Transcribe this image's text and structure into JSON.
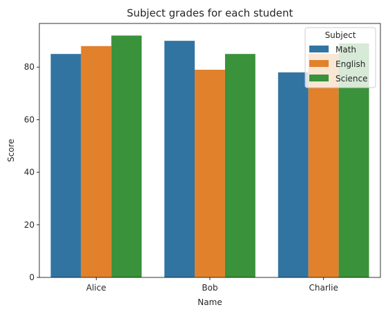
{
  "chart_data": {
    "type": "bar",
    "title": "Subject grades for each student",
    "xlabel": "Name",
    "ylabel": "Score",
    "categories": [
      "Alice",
      "Bob",
      "Charlie"
    ],
    "series": [
      {
        "name": "Math",
        "color": "#3274a1",
        "values": [
          85,
          90,
          78
        ]
      },
      {
        "name": "English",
        "color": "#e1812c",
        "values": [
          88,
          79,
          85
        ]
      },
      {
        "name": "Science",
        "color": "#3a923a",
        "values": [
          92,
          85,
          89
        ]
      }
    ],
    "ylim": [
      0,
      96.6
    ],
    "yticks": [
      0,
      20,
      40,
      60,
      80
    ],
    "legend": {
      "title": "Subject",
      "placement": "top-right"
    },
    "grid": false
  }
}
